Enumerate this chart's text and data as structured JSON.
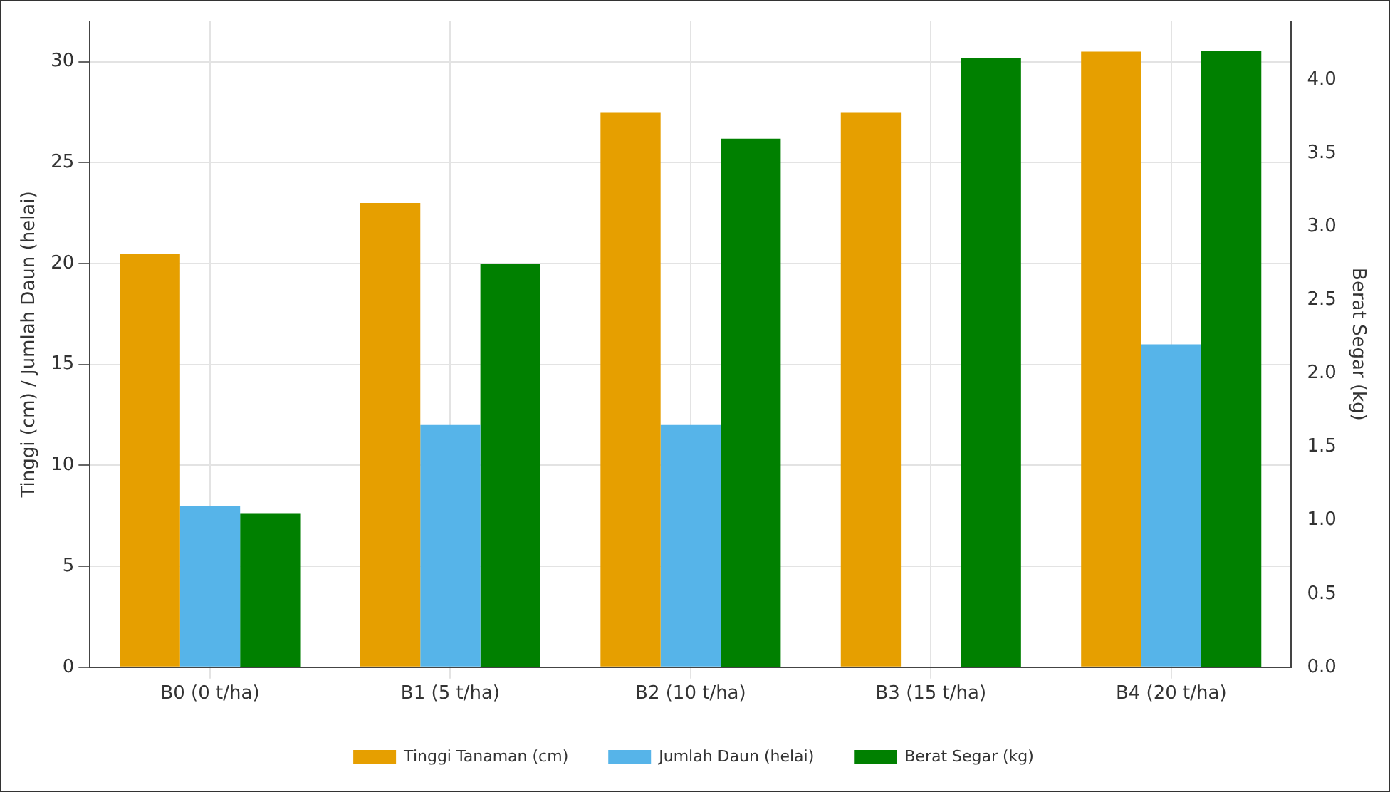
{
  "chart_data": {
    "type": "bar",
    "categories": [
      "B0 (0 t/ha)",
      "B1 (5 t/ha)",
      "B2 (10 t/ha)",
      "B3 (15 t/ha)",
      "B4 (20 t/ha)"
    ],
    "series": [
      {
        "name": "Tinggi Tanaman (cm)",
        "color": "#e69f00",
        "values": [
          20.5,
          23,
          27.5,
          27.5,
          30.5
        ]
      },
      {
        "name": "Jumlah Daun (helai)",
        "color": "#56b4e9",
        "values": [
          8,
          12,
          12,
          null,
          16
        ]
      },
      {
        "name": "Berat Segar (kg)",
        "color": "#008000",
        "values": [
          1.05,
          2.75,
          3.6,
          4.15,
          4.2
        ],
        "axis": "y2"
      }
    ],
    "ylabel": "Tinggi (cm) / Jumlah Daun (helai)",
    "y2label": "Berat Segar (kg)",
    "ylim": [
      0,
      32
    ],
    "yticks": [
      0,
      5,
      10,
      15,
      20,
      25,
      30
    ],
    "y2lim": [
      0,
      4.4
    ],
    "y2ticks": [
      {
        "value": 0,
        "label": "0.0"
      },
      {
        "value": 0.5,
        "label": "0.5"
      },
      {
        "value": 1,
        "label": "1.0"
      },
      {
        "value": 1.5,
        "label": "1.5"
      },
      {
        "value": 2,
        "label": "2.0"
      },
      {
        "value": 2.5,
        "label": "2.5"
      },
      {
        "value": 3,
        "label": "3.0"
      },
      {
        "value": 3.5,
        "label": "3.5"
      },
      {
        "value": 4,
        "label": "4.0"
      }
    ],
    "grid": true,
    "legend": "bottom"
  }
}
